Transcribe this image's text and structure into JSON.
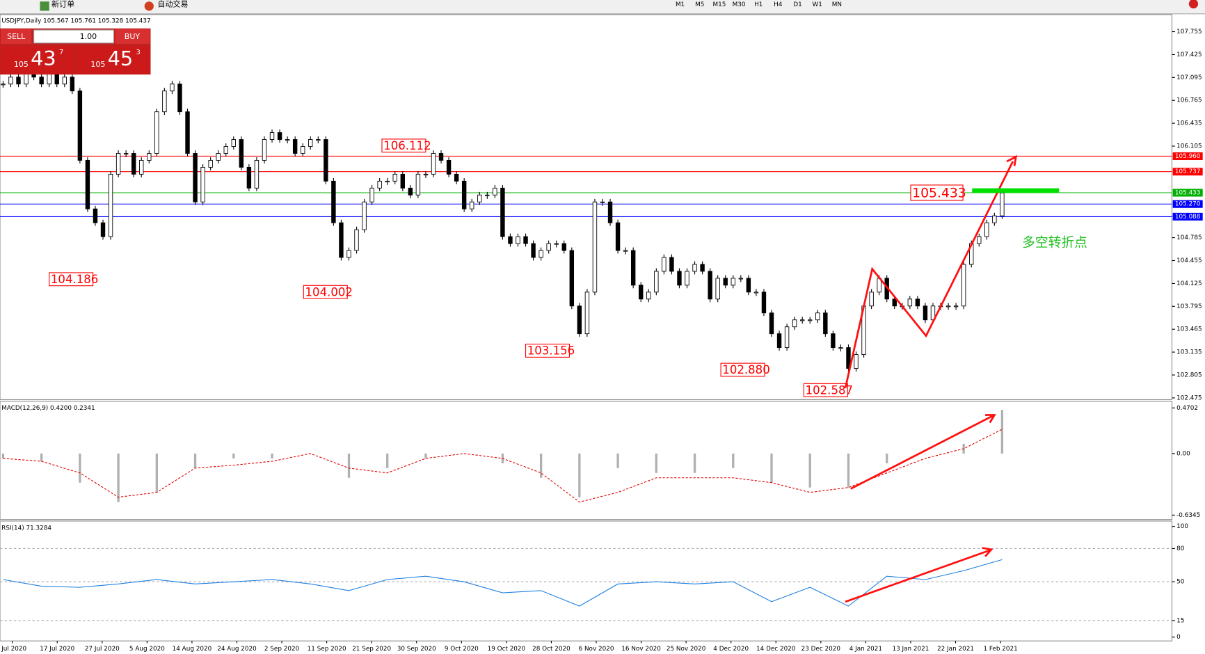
{
  "toolbar": {
    "new_order": "新订单",
    "auto_trading": "自动交易",
    "timeframes": [
      "M1",
      "M5",
      "M15",
      "M30",
      "H1",
      "H4",
      "D1",
      "W1",
      "MN"
    ]
  },
  "trade_panel": {
    "sell": "SELL",
    "buy": "BUY",
    "lots": "1.00",
    "bid": {
      "base": "105",
      "pips": "43",
      "point": "7"
    },
    "ask": {
      "base": "105",
      "pips": "45",
      "point": "3"
    }
  },
  "price_chart": {
    "header": "USDJPY,Daily  105.567 105.761 105.328 105.437",
    "ylim": [
      102.45,
      107.99
    ],
    "yticks": [
      107.755,
      107.425,
      107.095,
      106.765,
      106.435,
      106.105,
      104.785,
      104.455,
      104.125,
      103.795,
      103.465,
      103.135,
      102.805,
      102.475
    ],
    "levels": [
      {
        "value": 105.96,
        "label": "105.960",
        "color": "#ff0000"
      },
      {
        "value": 105.737,
        "label": "105.737",
        "color": "#ff0000"
      },
      {
        "value": 105.433,
        "label": "105.433",
        "color": "#00b000"
      },
      {
        "value": 105.27,
        "label": "105.270",
        "color": "#0000ff"
      },
      {
        "value": 105.088,
        "label": "105.088",
        "color": "#0000ff"
      }
    ],
    "annotations": [
      {
        "value": 106.112,
        "label": "106.112"
      },
      {
        "value": 104.186,
        "label": "104.186"
      },
      {
        "value": 104.002,
        "label": "104.002"
      },
      {
        "value": 103.156,
        "label": "103.156"
      },
      {
        "value": 102.88,
        "label": "102.880"
      },
      {
        "value": 102.587,
        "label": "102.587"
      },
      {
        "value": 105.433,
        "label": "105.433"
      }
    ],
    "note": "多空转折点",
    "closes": [
      107.0,
      107.1,
      107.0,
      107.2,
      107.1,
      107.0,
      107.2,
      107.0,
      107.1,
      106.9,
      105.9,
      105.2,
      105.0,
      104.8,
      105.7,
      106.0,
      106.0,
      105.7,
      105.9,
      106.0,
      106.6,
      106.9,
      107.0,
      106.6,
      106.0,
      105.3,
      105.8,
      105.9,
      106.0,
      106.1,
      106.2,
      105.8,
      105.5,
      105.9,
      106.2,
      106.3,
      106.2,
      106.2,
      106.0,
      106.1,
      106.2,
      106.2,
      105.6,
      105.0,
      104.5,
      104.6,
      104.9,
      105.3,
      105.5,
      105.6,
      105.6,
      105.7,
      105.5,
      105.4,
      105.7,
      105.7,
      106.0,
      105.9,
      105.7,
      105.6,
      105.2,
      105.3,
      105.4,
      105.4,
      105.5,
      104.8,
      104.7,
      104.8,
      104.7,
      104.5,
      104.6,
      104.7,
      104.7,
      104.6,
      103.8,
      103.4,
      104.0,
      105.3,
      105.3,
      105.0,
      104.6,
      104.6,
      104.1,
      103.9,
      104.0,
      104.3,
      104.5,
      104.3,
      104.1,
      104.3,
      104.4,
      104.3,
      103.9,
      104.2,
      104.1,
      104.2,
      104.2,
      104.0,
      104.0,
      103.7,
      103.4,
      103.2,
      103.5,
      103.6,
      103.6,
      103.6,
      103.7,
      103.4,
      103.2,
      103.2,
      102.9,
      103.1,
      103.8,
      104.0,
      104.2,
      103.9,
      103.8,
      103.8,
      103.9,
      103.8,
      103.6,
      103.8,
      103.8,
      103.8,
      103.8,
      104.4,
      104.7,
      104.8,
      105.0,
      105.1,
      105.43
    ]
  },
  "macd": {
    "label": "MACD(12,26,9) 0.4200 0.2341",
    "ylim": [
      -0.68,
      0.54
    ],
    "yticks": [
      0.4702,
      {
        "value": 0,
        "label": "0.00"
      },
      -0.6345
    ],
    "histogram": [
      -0.05,
      -0.08,
      -0.3,
      -0.5,
      -0.4,
      -0.15,
      -0.05,
      -0.05,
      0.0,
      -0.25,
      -0.15,
      -0.05,
      0.0,
      -0.1,
      -0.25,
      -0.45,
      -0.15,
      -0.2,
      -0.2,
      -0.15,
      -0.3,
      -0.35,
      -0.35,
      -0.1,
      0.0,
      0.1,
      0.45
    ],
    "signal": [
      -0.05,
      -0.08,
      -0.2,
      -0.45,
      -0.4,
      -0.15,
      -0.12,
      -0.08,
      0.0,
      -0.15,
      -0.2,
      -0.05,
      0.0,
      -0.05,
      -0.2,
      -0.5,
      -0.4,
      -0.25,
      -0.25,
      -0.25,
      -0.3,
      -0.4,
      -0.35,
      -0.2,
      -0.05,
      0.05,
      0.25
    ]
  },
  "rsi": {
    "label": "RSI(14) 71.3284",
    "ylim": [
      0,
      100
    ],
    "yticks": [
      100,
      80,
      50,
      15,
      0
    ],
    "values": [
      52,
      46,
      45,
      48,
      52,
      48,
      50,
      52,
      48,
      42,
      52,
      55,
      50,
      40,
      42,
      28,
      48,
      50,
      48,
      50,
      32,
      45,
      28,
      55,
      52,
      60,
      70
    ]
  },
  "dates": [
    "Jul 2020",
    "17 Jul 2020",
    "27 Jul 2020",
    "5 Aug 2020",
    "14 Aug 2020",
    "24 Aug 2020",
    "2 Sep 2020",
    "11 Sep 2020",
    "21 Sep 2020",
    "30 Sep 2020",
    "9 Oct 2020",
    "19 Oct 2020",
    "28 Oct 2020",
    "6 Nov 2020",
    "16 Nov 2020",
    "25 Nov 2020",
    "4 Dec 2020",
    "14 Dec 2020",
    "23 Dec 2020",
    "4 Jan 2021",
    "13 Jan 2021",
    "22 Jan 2021",
    "1 Feb 2021"
  ]
}
